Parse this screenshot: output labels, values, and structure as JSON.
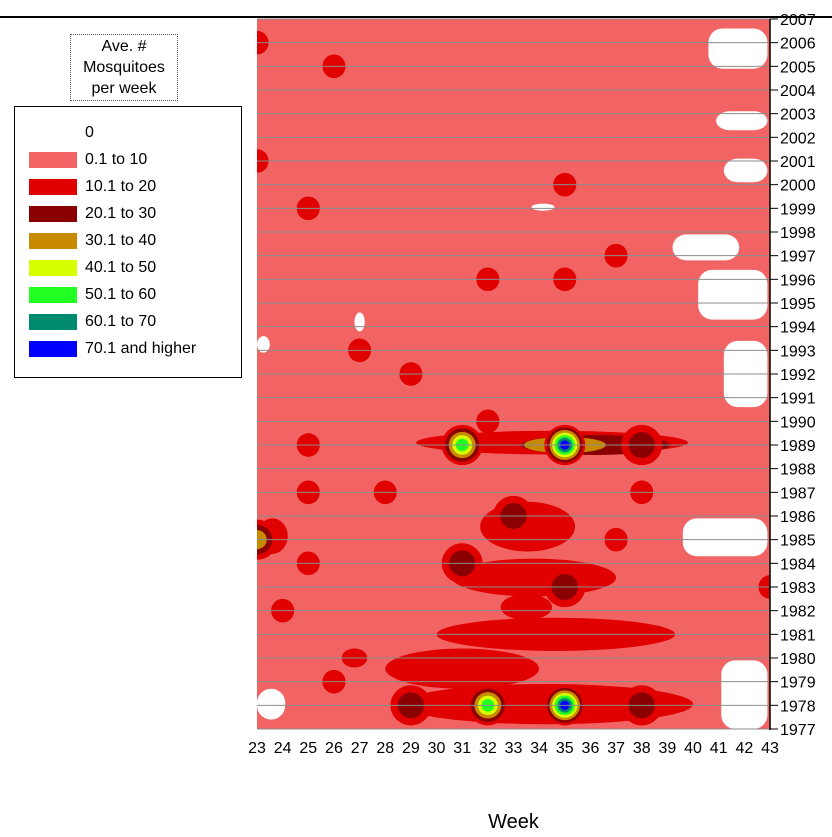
{
  "chart_data": {
    "type": "heatmap",
    "title": "",
    "xlabel": "Week",
    "ylabel": "",
    "legend_title": [
      "Ave. #",
      "Mosquitoes",
      "per week"
    ],
    "legend_placement": "left",
    "grid": true,
    "x_ticks": [
      "23",
      "24",
      "25",
      "26",
      "27",
      "28",
      "29",
      "30",
      "31",
      "32",
      "33",
      "34",
      "35",
      "36",
      "37",
      "38",
      "39",
      "40",
      "41",
      "42",
      "43"
    ],
    "xlim": [
      23,
      43
    ],
    "y_ticks": [
      "2007",
      "2006",
      "2005",
      "2004",
      "2003",
      "2002",
      "2001",
      "2000",
      "1999",
      "1998",
      "1997",
      "1996",
      "1995",
      "1994",
      "1993",
      "1992",
      "1991",
      "1990",
      "1989",
      "1988",
      "1987",
      "1986",
      "1985",
      "1984",
      "1983",
      "1982",
      "1981",
      "1980",
      "1979",
      "1978",
      "1977"
    ],
    "ylim": [
      1977,
      2007
    ],
    "levels": [
      {
        "label": "0",
        "color": "#ffffff"
      },
      {
        "label": "0.1 to 10",
        "color": "#f26464"
      },
      {
        "label": "10.1 to 20",
        "color": "#e00000"
      },
      {
        "label": "20.1 to 30",
        "color": "#8a0000"
      },
      {
        "label": "30.1 to 40",
        "color": "#c88a00"
      },
      {
        "label": "40.1 to 50",
        "color": "#d8ff00"
      },
      {
        "label": "50.1 to 60",
        "color": "#22ff22"
      },
      {
        "label": "60.1 to 70",
        "color": "#008a6e"
      },
      {
        "label": "70.1 and higher",
        "color": "#0000ff"
      }
    ],
    "zero_regions": [
      {
        "x": [
          40.6,
          42.9
        ],
        "y": [
          2004.9,
          2006.6
        ]
      },
      {
        "x": [
          40.9,
          42.9
        ],
        "y": [
          2002.3,
          2003.1
        ]
      },
      {
        "x": [
          41.2,
          42.9
        ],
        "y": [
          2000.1,
          2001.1
        ]
      },
      {
        "x": [
          39.2,
          41.8
        ],
        "y": [
          1996.8,
          1997.9
        ]
      },
      {
        "x": [
          40.2,
          42.9
        ],
        "y": [
          1994.3,
          1996.4
        ]
      },
      {
        "x": [
          41.2,
          42.9
        ],
        "y": [
          1990.6,
          1993.4
        ]
      },
      {
        "x": [
          39.6,
          42.9
        ],
        "y": [
          1984.3,
          1985.9
        ]
      },
      {
        "x": [
          41.1,
          42.9
        ],
        "y": [
          1977.0,
          1979.9
        ]
      },
      {
        "x": [
          23.0,
          23.5
        ],
        "y": [
          1992.9,
          1993.6
        ]
      },
      {
        "x": [
          23.0,
          24.1
        ],
        "y": [
          1977.4,
          1978.7
        ]
      },
      {
        "x": [
          33.7,
          34.6
        ],
        "y": [
          1998.9,
          1999.2
        ]
      },
      {
        "x": [
          26.8,
          27.2
        ],
        "y": [
          1993.8,
          1994.6
        ]
      }
    ],
    "hotspots": [
      {
        "week": 31,
        "year": 1989,
        "peak": "50.1 to 60"
      },
      {
        "week": 35,
        "year": 1989,
        "peak": "70.1 and higher"
      },
      {
        "week": 32,
        "year": 1978,
        "peak": "50.1 to 60"
      },
      {
        "week": 35,
        "year": 1978,
        "peak": "70.1 and higher"
      },
      {
        "week": 38,
        "year": 1989,
        "peak": "20.1 to 30"
      },
      {
        "week": 23,
        "year": 1985,
        "peak": "30.1 to 40"
      },
      {
        "week": 29,
        "year": 1978,
        "peak": "20.1 to 30"
      },
      {
        "week": 38,
        "year": 1978,
        "peak": "20.1 to 30"
      },
      {
        "week": 33,
        "year": 1986,
        "peak": "20.1 to 30"
      },
      {
        "week": 31,
        "year": 1984,
        "peak": "20.1 to 30"
      },
      {
        "week": 35,
        "year": 1983,
        "peak": "20.1 to 30"
      }
    ],
    "moderate_spots": [
      {
        "week": 23,
        "year": 2006,
        "level": "10.1 to 20"
      },
      {
        "week": 26,
        "year": 2005,
        "level": "10.1 to 20"
      },
      {
        "week": 23,
        "year": 2001,
        "level": "10.1 to 20"
      },
      {
        "week": 35,
        "year": 2000,
        "level": "10.1 to 20"
      },
      {
        "week": 25,
        "year": 1999,
        "level": "10.1 to 20"
      },
      {
        "week": 35,
        "year": 1996,
        "level": "10.1 to 20"
      },
      {
        "week": 32,
        "year": 1996,
        "level": "10.1 to 20"
      },
      {
        "week": 37,
        "year": 1997,
        "level": "10.1 to 20"
      },
      {
        "week": 27,
        "year": 1993,
        "level": "10.1 to 20"
      },
      {
        "week": 29,
        "year": 1992,
        "level": "10.1 to 20"
      },
      {
        "week": 32,
        "year": 1990,
        "level": "10.1 to 20"
      },
      {
        "week": 25,
        "year": 1989,
        "level": "10.1 to 20"
      },
      {
        "week": 25,
        "year": 1987,
        "level": "10.1 to 20"
      },
      {
        "week": 28,
        "year": 1987,
        "level": "10.1 to 20"
      },
      {
        "week": 38,
        "year": 1987,
        "level": "10.1 to 20"
      },
      {
        "week": 37,
        "year": 1985,
        "level": "10.1 to 20"
      },
      {
        "week": 25,
        "year": 1984,
        "level": "10.1 to 20"
      },
      {
        "week": 43,
        "year": 1983,
        "level": "10.1 to 20"
      },
      {
        "week": 24,
        "year": 1982,
        "level": "10.1 to 20"
      },
      {
        "week": 26,
        "year": 1979,
        "level": "10.1 to 20"
      }
    ]
  }
}
